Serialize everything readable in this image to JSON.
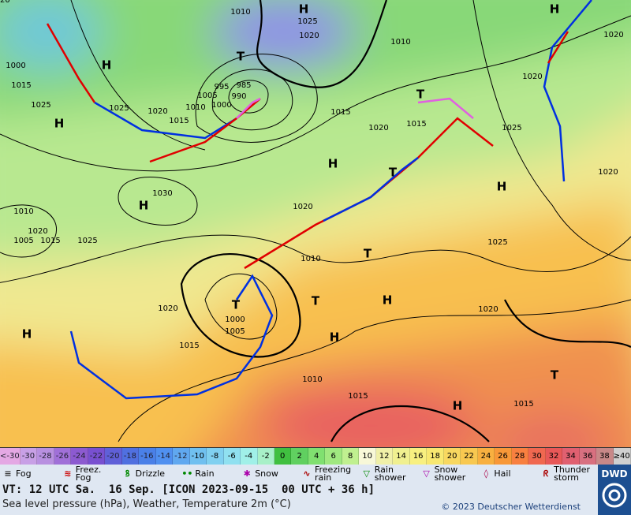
{
  "map": {
    "labels": [
      "H",
      "H",
      "H",
      "H",
      "H",
      "H",
      "H",
      "H",
      "H",
      "H",
      "H",
      "T",
      "T",
      "T",
      "T",
      "T",
      "T",
      "T",
      "1010",
      "1025",
      "1020",
      "1010",
      "1020",
      "1020",
      "1025",
      "1025",
      "1020",
      "1015",
      "1010",
      "1005",
      "1000",
      "995",
      "985",
      "990",
      "1015",
      "1020",
      "1015",
      "1025",
      "1020",
      "1030",
      "1025",
      "1020",
      "1010",
      "1025",
      "1020",
      "1015",
      "1005",
      "1000",
      "1015",
      "1010",
      "1015",
      "1020",
      "1010",
      "1015",
      "1020",
      "1005",
      "1000",
      "1015",
      "1020"
    ]
  },
  "temperature_scale": {
    "labels": [
      "<-30",
      "-30",
      "-28",
      "-26",
      "-24",
      "-22",
      "-20",
      "-18",
      "-16",
      "-14",
      "-12",
      "-10",
      "-8",
      "-6",
      "-4",
      "-2",
      "0",
      "2",
      "4",
      "6",
      "8",
      "10",
      "12",
      "14",
      "16",
      "18",
      "20",
      "22",
      "24",
      "26",
      "28",
      "30",
      "32",
      "34",
      "36",
      "38",
      "≥40"
    ],
    "colors": [
      "#e4a8e4",
      "#c8a0e6",
      "#b890e0",
      "#a070d8",
      "#8c5ad0",
      "#7850d0",
      "#6060d8",
      "#5070e0",
      "#4a80e8",
      "#5090f0",
      "#60a8f0",
      "#70c0f0",
      "#80d0f0",
      "#90e0f0",
      "#a0f0e8",
      "#a8f0c8",
      "#40c040",
      "#60d060",
      "#80e070",
      "#a0e880",
      "#c0f090",
      "#f8f8d8",
      "#f0f0a8",
      "#f0f090",
      "#f8f080",
      "#f8e870",
      "#f8d860",
      "#f8c850",
      "#f8b040",
      "#f89838",
      "#f88040",
      "#f06850",
      "#e85858",
      "#e06070",
      "#d87080",
      "#c88888",
      "#d0d0d0"
    ]
  },
  "weather_legend": [
    {
      "lines": [
        "Fog"
      ]
    },
    {
      "lines": [
        "Freez.",
        "Fog"
      ]
    },
    {
      "lines": [
        "Drizzle"
      ]
    },
    {
      "lines": [
        "Rain"
      ]
    },
    {
      "lines": [
        "Snow"
      ]
    },
    {
      "lines": [
        "Freezing",
        "rain"
      ]
    },
    {
      "lines": [
        "Rain",
        "shower"
      ]
    },
    {
      "lines": [
        "Snow",
        "shower"
      ]
    },
    {
      "lines": [
        "Hail"
      ]
    },
    {
      "lines": [
        "Thunder",
        "storm"
      ]
    }
  ],
  "footer": {
    "valid_time": "VT: 12 UTC Sa.  16 Sep. [ICON 2023-09-15  00 UTC + 36 h]",
    "description": "Sea level pressure (hPa), Weather, Temperature 2m (°C)",
    "copyright": "© 2023 Deutscher Wetterdienst",
    "logo": "DWD"
  }
}
